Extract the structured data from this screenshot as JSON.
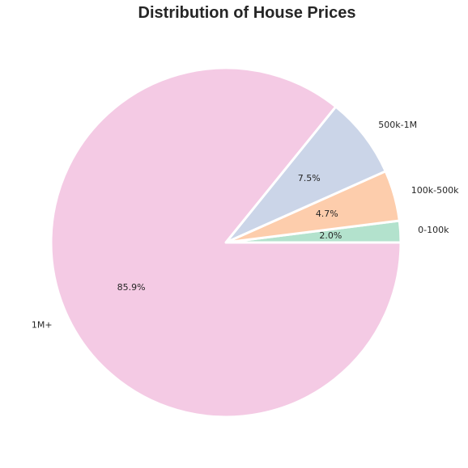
{
  "chart_data": {
    "type": "pie",
    "title": "Distribution of House Prices",
    "start_angle_deg": 0,
    "direction": "counterclockwise",
    "slices": [
      {
        "label": "0-100k",
        "value": 2.0,
        "pct_label": "2.0%",
        "color": "#b3e2cd"
      },
      {
        "label": "100k-500k",
        "value": 4.7,
        "pct_label": "4.7%",
        "color": "#fdcdac"
      },
      {
        "label": "500k-1M",
        "value": 7.5,
        "pct_label": "7.5%",
        "color": "#cbd5e8"
      },
      {
        "label": "1M+",
        "value": 85.9,
        "pct_label": "85.9%",
        "color": "#f4cae4"
      }
    ]
  }
}
